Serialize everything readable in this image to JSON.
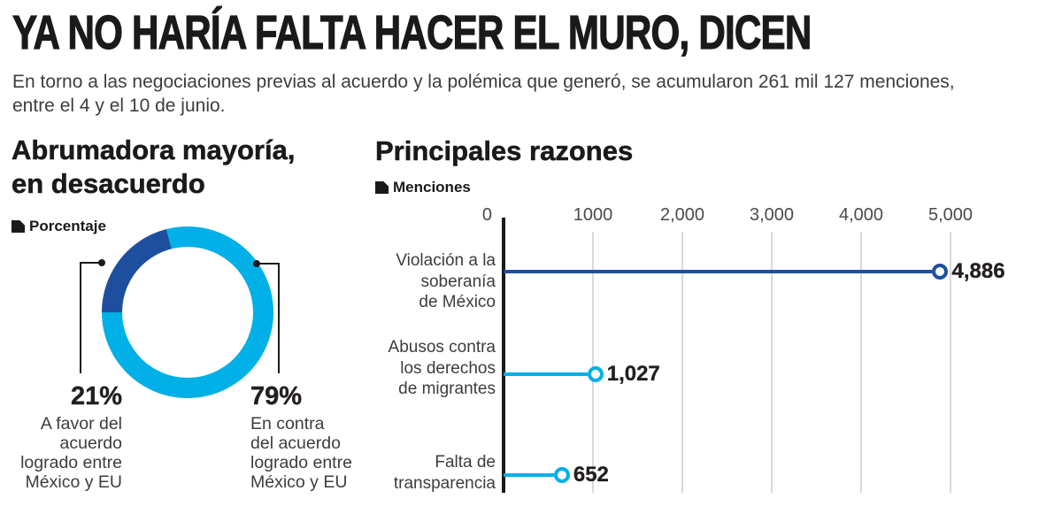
{
  "header": {
    "title": "YA NO HARÍA FALTA HACER EL MURO, DICEN",
    "subtitle_line1": "En torno a las negociaciones previas al acuerdo y la polémica que generó,  se acumularon 261 mil 127 menciones,",
    "subtitle_line2": "entre el 4 y el 10 de junio."
  },
  "colors": {
    "dark_blue": "#1e4f9f",
    "cyan": "#00b0e6",
    "ink": "#1a1a1a",
    "text_gray": "#3d3d3d",
    "gridline": "#d9d9d9"
  },
  "donut_section": {
    "title_line1": "Abrumadora mayoría,",
    "title_line2": "en desacuerdo",
    "legend_label": "Porcentaje",
    "left_label": {
      "pct": "21%",
      "line1": "A favor del",
      "line2": "acuerdo",
      "line3": "logrado entre",
      "line4": "México y EU"
    },
    "right_label": {
      "pct": "79%",
      "line1": "En contra",
      "line2": "del acuerdo",
      "line3": "logrado entre",
      "line4": "México y EU"
    }
  },
  "razones_section": {
    "title": "Principales razones",
    "legend_label": "Menciones"
  },
  "chart_data": [
    {
      "type": "pie",
      "subtype": "donut",
      "title": "Abrumadora mayoría, en desacuerdo",
      "unit_legend": "Porcentaje",
      "start_angle_deg_clockwise_from_top": 270,
      "slices": [
        {
          "label": "A favor del acuerdo logrado entre México y EU",
          "pct_label": "21%",
          "value": 21,
          "color": "#1e4f9f"
        },
        {
          "label": "En contra del acuerdo logrado entre México y EU",
          "pct_label": "79%",
          "value": 79,
          "color": "#00b0e6"
        }
      ]
    },
    {
      "type": "bar",
      "subtype": "horizontal-lollipop",
      "title": "Principales razones",
      "unit_legend": "Menciones",
      "categories": [
        "Violación a la soberanía de México",
        "Abusos contra los derechos de migrantes",
        "Falta de transparencia"
      ],
      "categories_lines": [
        [
          "Violación a la",
          "soberanía",
          "de México"
        ],
        [
          "Abusos contra",
          "los derechos",
          "de migrantes"
        ],
        [
          "Falta de",
          "transparencia"
        ]
      ],
      "values": [
        4886,
        1027,
        652
      ],
      "value_labels": [
        "4,886",
        "1,027",
        "652"
      ],
      "point_colors": [
        "#1e4f9f",
        "#00b0e6",
        "#00b0e6"
      ],
      "xlim": [
        0,
        5000
      ],
      "xticks": [
        0,
        1000,
        2000,
        3000,
        4000,
        5000
      ],
      "xtick_labels": [
        "0",
        "1000",
        "2,000",
        "3,000",
        "4,000",
        "5,000"
      ],
      "grid": true,
      "legend_position": "top-left"
    }
  ]
}
